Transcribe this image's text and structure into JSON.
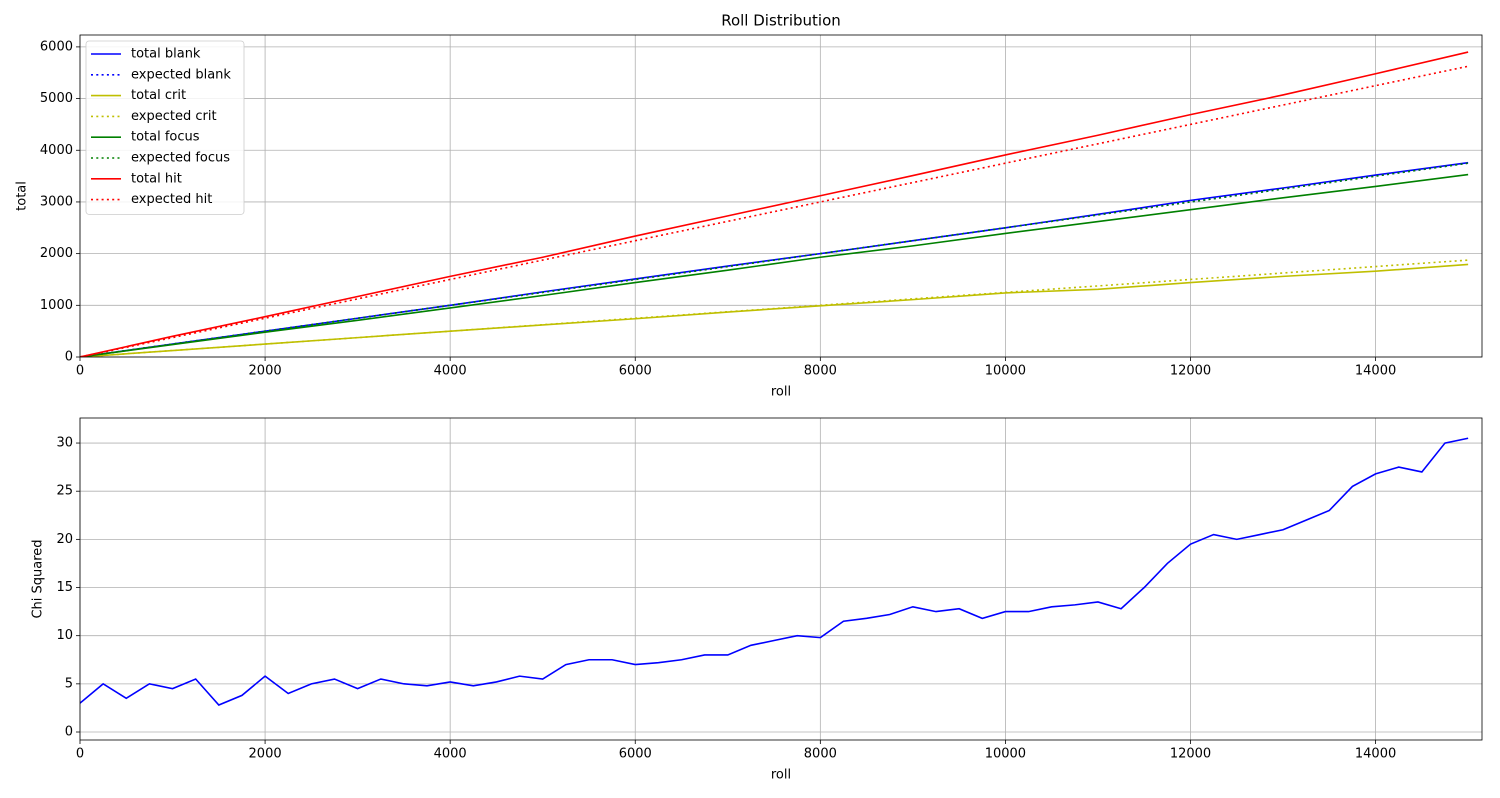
{
  "chart_data": [
    {
      "type": "line",
      "title": "Roll Distribution",
      "xlabel": "roll",
      "ylabel": "total",
      "x": [
        0,
        1000,
        2000,
        3000,
        4000,
        5000,
        6000,
        7000,
        8000,
        9000,
        10000,
        11000,
        12000,
        13000,
        14000,
        15000
      ],
      "series": [
        {
          "name": "total blank",
          "color": "#0000ff",
          "style": "solid",
          "values": [
            0,
            250,
            500,
            750,
            1000,
            1260,
            1510,
            1760,
            2000,
            2250,
            2500,
            2760,
            3030,
            3270,
            3520,
            3760
          ]
        },
        {
          "name": "expected blank",
          "color": "#0000ff",
          "style": "dotted",
          "values": [
            0,
            250,
            500,
            750,
            1000,
            1250,
            1500,
            1750,
            2000,
            2250,
            2500,
            2750,
            3000,
            3250,
            3500,
            3750
          ]
        },
        {
          "name": "total crit",
          "color": "#bfbf00",
          "style": "solid",
          "values": [
            0,
            125,
            250,
            375,
            500,
            620,
            740,
            870,
            990,
            1110,
            1240,
            1310,
            1440,
            1560,
            1660,
            1790
          ]
        },
        {
          "name": "expected crit",
          "color": "#bfbf00",
          "style": "dotted",
          "values": [
            0,
            125,
            250,
            375,
            500,
            625,
            750,
            875,
            1000,
            1125,
            1250,
            1375,
            1500,
            1625,
            1750,
            1875
          ]
        },
        {
          "name": "total focus",
          "color": "#008000",
          "style": "solid",
          "values": [
            0,
            240,
            480,
            710,
            950,
            1190,
            1440,
            1680,
            1930,
            2150,
            2390,
            2620,
            2850,
            3080,
            3300,
            3530
          ]
        },
        {
          "name": "expected focus",
          "color": "#008000",
          "style": "dotted",
          "values": [
            0,
            250,
            500,
            750,
            1000,
            1250,
            1500,
            1750,
            2000,
            2250,
            2500,
            2750,
            3000,
            3250,
            3500,
            3750
          ]
        },
        {
          "name": "total hit",
          "color": "#ff0000",
          "style": "solid",
          "values": [
            0,
            400,
            780,
            1170,
            1560,
            1930,
            2340,
            2730,
            3120,
            3510,
            3910,
            4290,
            4690,
            5070,
            5480,
            5900
          ]
        },
        {
          "name": "expected hit",
          "color": "#ff0000",
          "style": "dotted",
          "values": [
            0,
            375,
            750,
            1125,
            1500,
            1875,
            2250,
            2625,
            3000,
            3375,
            3750,
            4125,
            4500,
            4875,
            5250,
            5625
          ]
        }
      ],
      "xlim": [
        0,
        15150
      ],
      "ylim": [
        0,
        6230
      ],
      "xticks": [
        0,
        2000,
        4000,
        6000,
        8000,
        10000,
        12000,
        14000
      ],
      "yticks": [
        0,
        1000,
        2000,
        3000,
        4000,
        5000,
        6000
      ],
      "grid": true,
      "legend": "upper-left"
    },
    {
      "type": "line",
      "xlabel": "roll",
      "ylabel": "Chi Squared",
      "x": [
        0,
        250,
        500,
        750,
        1000,
        1250,
        1500,
        1750,
        2000,
        2250,
        2500,
        2750,
        3000,
        3250,
        3500,
        3750,
        4000,
        4250,
        4500,
        4750,
        5000,
        5250,
        5500,
        5750,
        6000,
        6250,
        6500,
        6750,
        7000,
        7250,
        7500,
        7750,
        8000,
        8250,
        8500,
        8750,
        9000,
        9250,
        9500,
        9750,
        10000,
        10250,
        10500,
        10750,
        11000,
        11250,
        11500,
        11750,
        12000,
        12250,
        12500,
        12750,
        13000,
        13250,
        13500,
        13750,
        14000,
        14250,
        14500,
        14750,
        15000
      ],
      "series": [
        {
          "color": "#0000ff",
          "style": "solid",
          "values": [
            3,
            5,
            3.5,
            5,
            4.5,
            5.5,
            2.8,
            3.8,
            5.8,
            4,
            5,
            5.5,
            4.5,
            5.5,
            5,
            4.8,
            5.2,
            4.8,
            5.2,
            5.8,
            5.5,
            7,
            7.5,
            7.5,
            7,
            7.2,
            7.5,
            8,
            8,
            9,
            9.5,
            10,
            9.8,
            11.5,
            11.8,
            12.2,
            13,
            12.5,
            12.8,
            11.8,
            12.5,
            12.5,
            13,
            13.2,
            13.5,
            12.8,
            15,
            17.5,
            19.5,
            20.5,
            20,
            20.5,
            21,
            22,
            23,
            25.5,
            26.8,
            27.5,
            27,
            30,
            30.5
          ]
        }
      ],
      "xlim": [
        0,
        15150
      ],
      "ylim": [
        -0.83,
        32.6
      ],
      "xticks": [
        0,
        2000,
        4000,
        6000,
        8000,
        10000,
        12000,
        14000
      ],
      "yticks": [
        0,
        5,
        10,
        15,
        20,
        25,
        30
      ],
      "grid": true
    }
  ]
}
